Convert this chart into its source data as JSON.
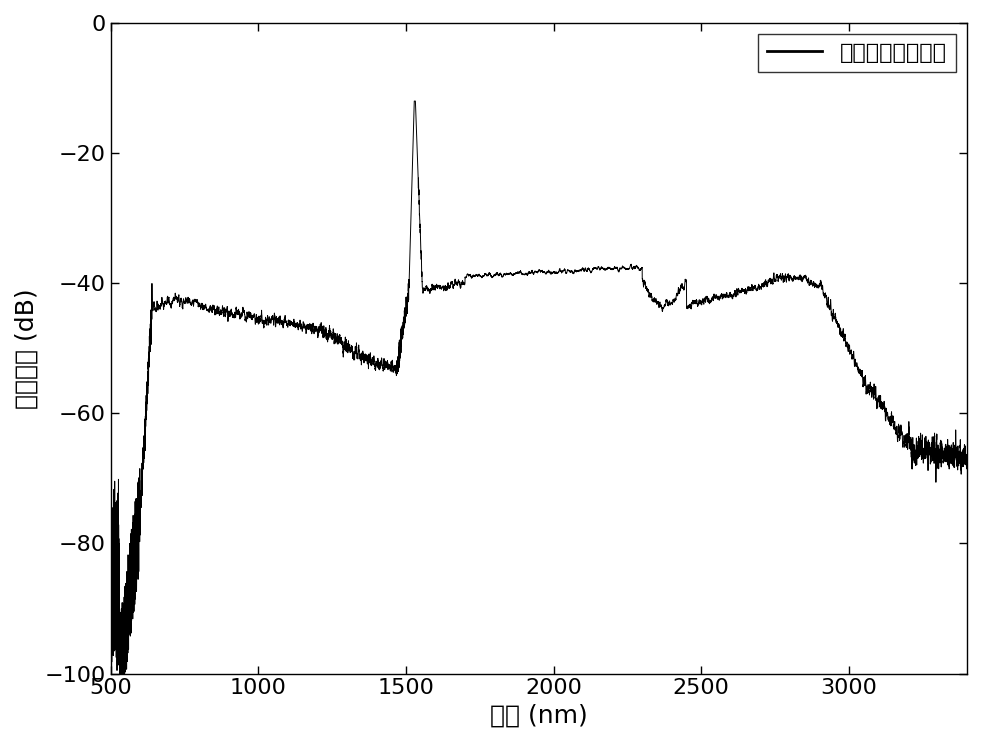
{
  "xlabel": "波长 (nm)",
  "ylabel": "相对强度 (dB)",
  "legend_label": "超连续谱激光光谱",
  "xlim": [
    500,
    3400
  ],
  "ylim": [
    -100,
    0
  ],
  "xticks": [
    500,
    1000,
    1500,
    2000,
    2500,
    3000
  ],
  "yticks": [
    0,
    -20,
    -40,
    -60,
    -80,
    -100
  ],
  "line_color": "#000000",
  "background_color": "#ffffff",
  "xlabel_fontsize": 18,
  "ylabel_fontsize": 18,
  "tick_fontsize": 16,
  "legend_fontsize": 16
}
